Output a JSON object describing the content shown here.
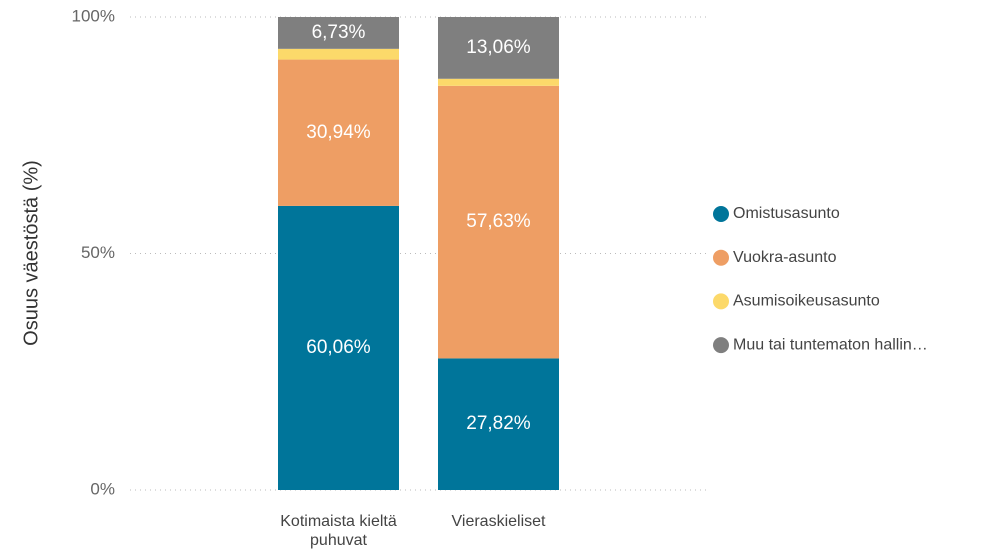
{
  "chart_data": {
    "type": "stacked_bar",
    "y_label": "Osuus väestöstä (%)",
    "categories": [
      "Kotimaista kieltä puhuvat",
      "Vieraskieliset"
    ],
    "series": [
      {
        "name": "Omistusasunto",
        "color": "#00759a",
        "values": [
          60.06,
          27.82
        ],
        "value_labels": [
          "60,06%",
          "27,82%"
        ]
      },
      {
        "name": "Vuokra-asunto",
        "color": "#ee9e64",
        "values": [
          30.94,
          57.63
        ],
        "value_labels": [
          "30,94%",
          "57,63%"
        ]
      },
      {
        "name": "Asumisoikeusasunto",
        "color": "#fcd96a",
        "values": [
          2.27,
          1.49
        ],
        "value_labels": [
          null,
          null
        ]
      },
      {
        "name": "Muu tai tuntematon hallin…",
        "color": "#7f7f7f",
        "values": [
          6.73,
          13.06
        ],
        "value_labels": [
          "6,73%",
          "13,06%"
        ]
      }
    ],
    "ylim": [
      0,
      100
    ],
    "yticks": [
      {
        "value": 0,
        "label": "0%"
      },
      {
        "value": 50,
        "label": "50%"
      },
      {
        "value": 100,
        "label": "100%"
      }
    ],
    "grid": true,
    "legend": "right"
  }
}
